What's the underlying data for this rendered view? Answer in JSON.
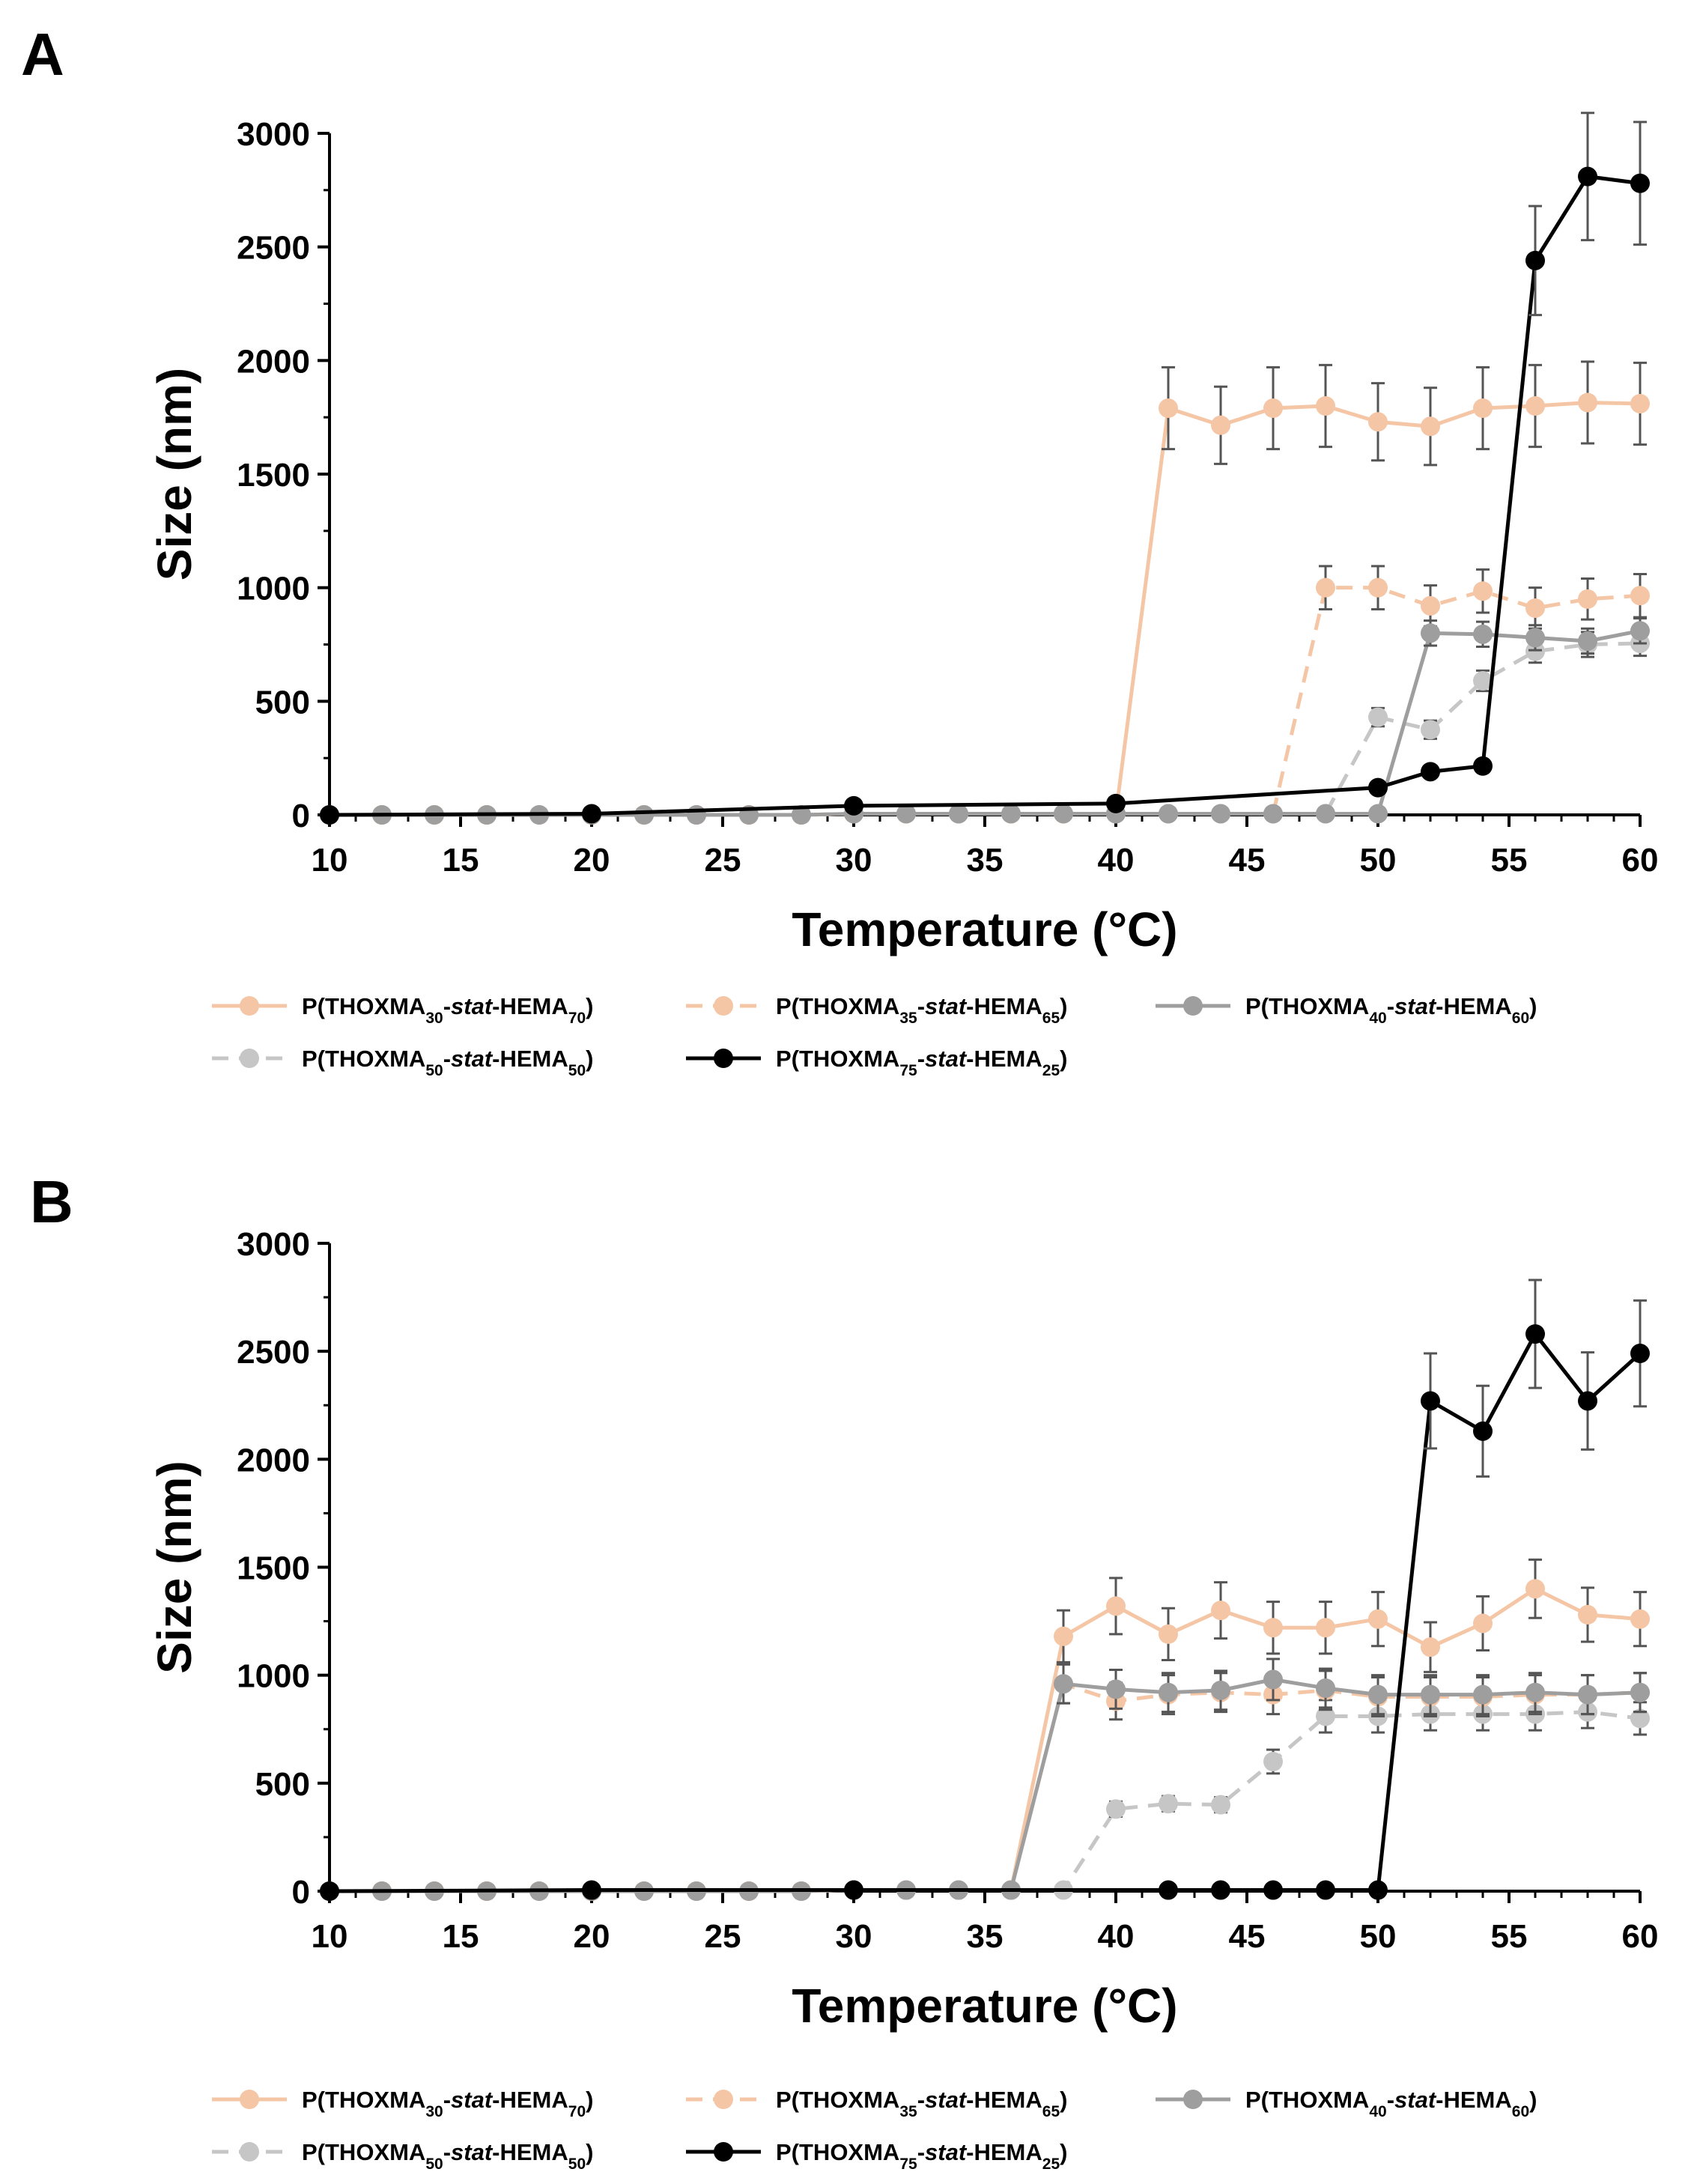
{
  "colors": {
    "s30": "#f5c6a5",
    "s35": "#f5c6a5",
    "s40": "#9e9e9e",
    "s50": "#c6c6c6",
    "s75": "#000000",
    "axis": "#000000",
    "error_bar": "#555555"
  },
  "chart_data": [
    {
      "panel_label": "A",
      "type": "line",
      "xlabel": "Temperature (°C)",
      "ylabel": "Size (nm)",
      "xlim": [
        10,
        60
      ],
      "ylim": [
        0,
        3000
      ],
      "xticks": [
        10,
        15,
        20,
        25,
        30,
        35,
        40,
        45,
        50,
        55,
        60
      ],
      "yticks": [
        0,
        500,
        1000,
        1500,
        2000,
        2500,
        3000
      ],
      "series": [
        {
          "key": "s30",
          "dashed": false,
          "x": [
            10,
            12,
            14,
            16,
            18,
            20,
            22,
            24,
            26,
            28,
            30,
            32,
            34,
            36,
            38,
            40,
            42,
            44,
            46,
            48,
            50,
            52,
            54,
            56,
            58,
            60
          ],
          "y": [
            0,
            0,
            0,
            0,
            0,
            0,
            0,
            0,
            0,
            0,
            5,
            5,
            5,
            5,
            5,
            5,
            1790,
            1715,
            1790,
            1800,
            1730,
            1710,
            1790,
            1800,
            1815,
            1810
          ],
          "err": [
            0,
            0,
            0,
            0,
            0,
            0,
            0,
            0,
            0,
            0,
            0,
            0,
            0,
            0,
            0,
            0,
            180,
            170,
            180,
            180,
            170,
            170,
            180,
            180,
            180,
            180
          ]
        },
        {
          "key": "s35",
          "dashed": true,
          "x": [
            10,
            12,
            14,
            16,
            18,
            20,
            22,
            24,
            26,
            28,
            30,
            32,
            34,
            36,
            38,
            40,
            42,
            44,
            46,
            48,
            50,
            52,
            54,
            56,
            58,
            60
          ],
          "y": [
            0,
            0,
            0,
            0,
            0,
            0,
            0,
            0,
            0,
            0,
            5,
            5,
            5,
            5,
            5,
            5,
            5,
            5,
            5,
            1000,
            1000,
            920,
            985,
            910,
            950,
            965
          ],
          "err": [
            0,
            0,
            0,
            0,
            0,
            0,
            0,
            0,
            0,
            0,
            0,
            0,
            0,
            0,
            0,
            0,
            0,
            0,
            0,
            95,
            95,
            90,
            95,
            90,
            90,
            95
          ]
        },
        {
          "key": "s40",
          "dashed": false,
          "x": [
            10,
            12,
            14,
            16,
            18,
            20,
            22,
            24,
            26,
            28,
            30,
            32,
            34,
            36,
            38,
            40,
            42,
            44,
            46,
            48,
            50,
            52,
            54,
            56,
            58,
            60
          ],
          "y": [
            0,
            0,
            0,
            0,
            0,
            0,
            0,
            0,
            0,
            0,
            5,
            5,
            5,
            5,
            5,
            5,
            5,
            5,
            5,
            5,
            5,
            800,
            795,
            780,
            765,
            810
          ],
          "err": [
            0,
            0,
            0,
            0,
            0,
            0,
            0,
            0,
            0,
            0,
            0,
            0,
            0,
            0,
            0,
            0,
            0,
            0,
            0,
            0,
            0,
            55,
            55,
            55,
            55,
            55
          ]
        },
        {
          "key": "s50",
          "dashed": true,
          "x": [
            10,
            12,
            14,
            16,
            18,
            20,
            22,
            24,
            26,
            28,
            30,
            32,
            34,
            36,
            38,
            40,
            42,
            44,
            46,
            48,
            50,
            52,
            54,
            56,
            58,
            60
          ],
          "y": [
            0,
            0,
            0,
            0,
            0,
            0,
            0,
            0,
            0,
            0,
            5,
            5,
            5,
            5,
            5,
            5,
            5,
            5,
            5,
            5,
            430,
            375,
            590,
            720,
            750,
            755
          ],
          "err": [
            0,
            0,
            0,
            0,
            0,
            0,
            0,
            0,
            0,
            0,
            0,
            0,
            0,
            0,
            0,
            0,
            0,
            0,
            0,
            0,
            40,
            40,
            45,
            50,
            55,
            55
          ]
        },
        {
          "key": "s75",
          "dashed": false,
          "x": [
            10,
            20,
            30,
            40,
            50,
            52,
            54,
            56,
            58,
            60
          ],
          "y": [
            0,
            5,
            40,
            50,
            120,
            190,
            215,
            2440,
            2810,
            2780
          ],
          "err": [
            0,
            0,
            0,
            0,
            0,
            0,
            0,
            240,
            280,
            270
          ]
        }
      ],
      "legend": {
        "s30": {
          "pre": "P(THOXMA",
          "sub1": "30",
          "mid1": "-",
          "it": "stat",
          "mid2": "-HEMA",
          "sub2": "70",
          "post": ")"
        },
        "s35": {
          "pre": "P(THOXMA",
          "sub1": "35",
          "mid1": "-",
          "it": "stat",
          "mid2": "-HEMA",
          "sub2": "65",
          "post": ")"
        },
        "s40": {
          "pre": "P(THOXMA",
          "sub1": "40",
          "mid1": "-",
          "it": "stat",
          "mid2": "-HEMA",
          "sub2": "60",
          "post": ")"
        },
        "s50": {
          "pre": "P(THOXMA",
          "sub1": "50",
          "mid1": "-",
          "it": "stat",
          "mid2": "-HEMA",
          "sub2": "50",
          "post": ")"
        },
        "s75": {
          "pre": "P(THOXMA",
          "sub1": "75",
          "mid1": "-",
          "it": "stat",
          "mid2": "-HEMA",
          "sub2": "25",
          "post": ")"
        }
      }
    },
    {
      "panel_label": "B",
      "type": "line",
      "xlabel": "Temperature (°C)",
      "ylabel": "Size (nm)",
      "xlim": [
        10,
        60
      ],
      "ylim": [
        0,
        3000
      ],
      "xticks": [
        10,
        15,
        20,
        25,
        30,
        35,
        40,
        45,
        50,
        55,
        60
      ],
      "yticks": [
        0,
        500,
        1000,
        1500,
        2000,
        2500,
        3000
      ],
      "series": [
        {
          "key": "s30",
          "dashed": false,
          "x": [
            10,
            12,
            14,
            16,
            18,
            20,
            22,
            24,
            26,
            28,
            30,
            32,
            34,
            36,
            38,
            40,
            42,
            44,
            46,
            48,
            50,
            52,
            54,
            56,
            58,
            60
          ],
          "y": [
            0,
            0,
            0,
            0,
            0,
            0,
            0,
            0,
            0,
            0,
            5,
            5,
            5,
            5,
            1180,
            1320,
            1190,
            1300,
            1220,
            1220,
            1260,
            1130,
            1240,
            1400,
            1280,
            1260
          ],
          "err": [
            0,
            0,
            0,
            0,
            0,
            0,
            0,
            0,
            0,
            0,
            0,
            0,
            0,
            0,
            120,
            130,
            120,
            130,
            120,
            120,
            125,
            115,
            125,
            135,
            125,
            125
          ]
        },
        {
          "key": "s35",
          "dashed": true,
          "x": [
            10,
            12,
            14,
            16,
            18,
            20,
            22,
            24,
            26,
            28,
            30,
            32,
            34,
            36,
            38,
            40,
            42,
            44,
            46,
            48,
            50,
            52,
            54,
            56,
            58,
            60
          ],
          "y": [
            0,
            0,
            0,
            0,
            0,
            0,
            0,
            0,
            0,
            0,
            5,
            5,
            5,
            5,
            960,
            880,
            910,
            920,
            910,
            930,
            900,
            900,
            900,
            910,
            910,
            920
          ],
          "err": [
            0,
            0,
            0,
            0,
            0,
            0,
            0,
            0,
            0,
            0,
            0,
            0,
            0,
            0,
            90,
            85,
            90,
            90,
            90,
            90,
            90,
            90,
            90,
            90,
            90,
            90
          ]
        },
        {
          "key": "s40",
          "dashed": false,
          "x": [
            10,
            12,
            14,
            16,
            18,
            20,
            22,
            24,
            26,
            28,
            30,
            32,
            34,
            36,
            38,
            40,
            42,
            44,
            46,
            48,
            50,
            52,
            54,
            56,
            58,
            60
          ],
          "y": [
            0,
            0,
            0,
            0,
            0,
            0,
            0,
            0,
            0,
            0,
            5,
            5,
            5,
            5,
            960,
            935,
            920,
            930,
            980,
            940,
            910,
            910,
            910,
            920,
            910,
            920
          ],
          "err": [
            0,
            0,
            0,
            0,
            0,
            0,
            0,
            0,
            0,
            0,
            0,
            0,
            0,
            0,
            90,
            90,
            90,
            90,
            95,
            90,
            90,
            90,
            90,
            90,
            90,
            90
          ]
        },
        {
          "key": "s50",
          "dashed": true,
          "x": [
            10,
            12,
            14,
            16,
            18,
            20,
            22,
            24,
            26,
            28,
            30,
            32,
            34,
            36,
            38,
            40,
            42,
            44,
            46,
            48,
            50,
            52,
            54,
            56,
            58,
            60
          ],
          "y": [
            0,
            0,
            0,
            0,
            0,
            0,
            0,
            0,
            0,
            0,
            5,
            5,
            5,
            5,
            5,
            380,
            405,
            400,
            600,
            810,
            810,
            820,
            820,
            820,
            830,
            800
          ],
          "err": [
            0,
            0,
            0,
            0,
            0,
            0,
            0,
            0,
            0,
            0,
            0,
            0,
            0,
            0,
            0,
            35,
            35,
            35,
            55,
            75,
            75,
            75,
            75,
            75,
            75,
            75
          ]
        },
        {
          "key": "s75",
          "dashed": false,
          "x": [
            10,
            20,
            30,
            42,
            44,
            46,
            48,
            50,
            52,
            54,
            56,
            58,
            60
          ],
          "y": [
            0,
            5,
            5,
            5,
            5,
            5,
            5,
            5,
            2270,
            2130,
            2580,
            2270,
            2490
          ],
          "err": [
            0,
            0,
            0,
            0,
            0,
            0,
            0,
            0,
            220,
            210,
            250,
            225,
            245
          ]
        }
      ],
      "legend": {
        "s30": {
          "pre": "P(THOXMA",
          "sub1": "30",
          "mid1": "-",
          "it": "stat",
          "mid2": "-HEMA",
          "sub2": "70",
          "post": ")"
        },
        "s35": {
          "pre": "P(THOXMA",
          "sub1": "35",
          "mid1": "-",
          "it": "stat",
          "mid2": "-HEMA",
          "sub2": "65",
          "post": ")"
        },
        "s40": {
          "pre": "P(THOXMA",
          "sub1": "40",
          "mid1": "-",
          "it": "stat",
          "mid2": "-HEMA",
          "sub2": "60",
          "post": ")"
        },
        "s50": {
          "pre": "P(THOXMA",
          "sub1": "50",
          "mid1": "-",
          "it": "stat",
          "mid2": "-HEMA",
          "sub2": "50",
          "post": ")"
        },
        "s75": {
          "pre": "P(THOXMA",
          "sub1": "75",
          "mid1": "-",
          "it": "stat",
          "mid2": "-HEMA",
          "sub2": "25",
          "post": ")"
        }
      }
    }
  ]
}
